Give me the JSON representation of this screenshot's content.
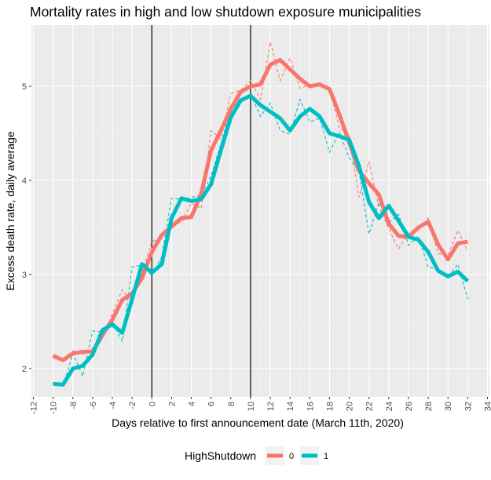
{
  "chart_data": {
    "type": "line",
    "title": "Mortality rates in high and low shutdown exposure municipalities",
    "xlabel": "Days relative to first announcement date (March 11th, 2020)",
    "ylabel": "Excess death rate, daily average",
    "xlim": [
      -12.2,
      34.2
    ],
    "ylim": [
      1.7,
      5.65
    ],
    "x_ticks": [
      -12,
      -10,
      -8,
      -6,
      -4,
      -2,
      0,
      2,
      4,
      6,
      8,
      10,
      12,
      14,
      16,
      18,
      20,
      22,
      24,
      26,
      28,
      30,
      32,
      34
    ],
    "y_ticks": [
      2,
      3,
      4,
      5
    ],
    "vlines": [
      0,
      10
    ],
    "legend": {
      "title": "HighShutdown",
      "position": "bottom"
    },
    "background": "#EBEBEB",
    "grid": true,
    "series": [
      {
        "name": "0",
        "color": "#F8766D",
        "smoothed": [
          [
            -10,
            2.14
          ],
          [
            -9,
            2.09
          ],
          [
            -8,
            2.16
          ],
          [
            -7,
            2.18
          ],
          [
            -6,
            2.18
          ],
          [
            -5,
            2.36
          ],
          [
            -4,
            2.52
          ],
          [
            -3,
            2.73
          ],
          [
            -2,
            2.8
          ],
          [
            -1,
            2.96
          ],
          [
            0,
            3.24
          ],
          [
            1,
            3.42
          ],
          [
            2,
            3.51
          ],
          [
            3,
            3.6
          ],
          [
            4,
            3.61
          ],
          [
            5,
            3.86
          ],
          [
            6,
            4.32
          ],
          [
            7,
            4.53
          ],
          [
            8,
            4.76
          ],
          [
            9,
            4.94
          ],
          [
            10,
            5.0
          ],
          [
            11,
            5.02
          ],
          [
            12,
            5.23
          ],
          [
            13,
            5.28
          ],
          [
            14,
            5.18
          ],
          [
            15,
            5.08
          ],
          [
            16,
            5.0
          ],
          [
            17,
            5.02
          ],
          [
            18,
            4.97
          ],
          [
            19,
            4.7
          ],
          [
            20,
            4.4
          ],
          [
            21,
            4.1
          ],
          [
            22,
            3.97
          ],
          [
            23,
            3.85
          ],
          [
            24,
            3.54
          ],
          [
            25,
            3.41
          ],
          [
            26,
            3.4
          ],
          [
            27,
            3.5
          ],
          [
            28,
            3.56
          ],
          [
            29,
            3.32
          ],
          [
            30,
            3.16
          ],
          [
            31,
            3.33
          ],
          [
            32,
            3.35
          ]
        ],
        "daily": [
          [
            -10,
            2.11
          ],
          [
            -9,
            2.1
          ],
          [
            -8,
            2.19
          ],
          [
            -7,
            2.15
          ],
          [
            -6,
            2.22
          ],
          [
            -5,
            2.31
          ],
          [
            -4,
            2.58
          ],
          [
            -3,
            2.84
          ],
          [
            -2,
            2.71
          ],
          [
            -1,
            3.02
          ],
          [
            0,
            3.35
          ],
          [
            1,
            3.39
          ],
          [
            2,
            3.55
          ],
          [
            3,
            3.55
          ],
          [
            4,
            3.76
          ],
          [
            5,
            3.7
          ],
          [
            6,
            4.53
          ],
          [
            7,
            4.44
          ],
          [
            8,
            4.92
          ],
          [
            9,
            4.96
          ],
          [
            10,
            5.06
          ],
          [
            11,
            4.86
          ],
          [
            12,
            5.47
          ],
          [
            13,
            5.06
          ],
          [
            14,
            5.3
          ],
          [
            15,
            4.98
          ],
          [
            16,
            5.01
          ],
          [
            17,
            5.03
          ],
          [
            18,
            4.98
          ],
          [
            19,
            4.56
          ],
          [
            20,
            4.49
          ],
          [
            21,
            3.82
          ],
          [
            22,
            4.2
          ],
          [
            23,
            3.72
          ],
          [
            24,
            3.49
          ],
          [
            25,
            3.27
          ],
          [
            26,
            3.45
          ],
          [
            27,
            3.47
          ],
          [
            28,
            3.6
          ],
          [
            29,
            3.22
          ],
          [
            30,
            3.2
          ],
          [
            31,
            3.47
          ],
          [
            32,
            3.25
          ]
        ]
      },
      {
        "name": "1",
        "color": "#00BFC4",
        "smoothed": [
          [
            -10,
            1.84
          ],
          [
            -9,
            1.83
          ],
          [
            -8,
            2.0
          ],
          [
            -7,
            2.03
          ],
          [
            -6,
            2.15
          ],
          [
            -5,
            2.41
          ],
          [
            -4,
            2.47
          ],
          [
            -3,
            2.38
          ],
          [
            -2,
            2.74
          ],
          [
            -1,
            3.11
          ],
          [
            0,
            3.02
          ],
          [
            1,
            3.11
          ],
          [
            2,
            3.6
          ],
          [
            3,
            3.81
          ],
          [
            4,
            3.78
          ],
          [
            5,
            3.8
          ],
          [
            6,
            3.96
          ],
          [
            7,
            4.32
          ],
          [
            8,
            4.67
          ],
          [
            9,
            4.85
          ],
          [
            10,
            4.9
          ],
          [
            11,
            4.8
          ],
          [
            12,
            4.73
          ],
          [
            13,
            4.66
          ],
          [
            14,
            4.53
          ],
          [
            15,
            4.68
          ],
          [
            16,
            4.76
          ],
          [
            17,
            4.68
          ],
          [
            18,
            4.5
          ],
          [
            19,
            4.47
          ],
          [
            20,
            4.43
          ],
          [
            21,
            4.15
          ],
          [
            22,
            3.77
          ],
          [
            23,
            3.6
          ],
          [
            24,
            3.73
          ],
          [
            25,
            3.57
          ],
          [
            26,
            3.4
          ],
          [
            27,
            3.37
          ],
          [
            28,
            3.24
          ],
          [
            29,
            3.04
          ],
          [
            30,
            2.98
          ],
          [
            31,
            3.03
          ],
          [
            32,
            2.93
          ]
        ],
        "daily": [
          [
            -10,
            1.85
          ],
          [
            -9,
            1.81
          ],
          [
            -8,
            2.16
          ],
          [
            -7,
            1.92
          ],
          [
            -6,
            2.4
          ],
          [
            -5,
            2.39
          ],
          [
            -4,
            2.5
          ],
          [
            -3,
            2.29
          ],
          [
            -2,
            3.08
          ],
          [
            -1,
            3.1
          ],
          [
            0,
            2.99
          ],
          [
            1,
            3.19
          ],
          [
            2,
            3.81
          ],
          [
            3,
            3.8
          ],
          [
            4,
            3.82
          ],
          [
            5,
            3.84
          ],
          [
            6,
            4.05
          ],
          [
            7,
            4.39
          ],
          [
            8,
            4.76
          ],
          [
            9,
            4.84
          ],
          [
            10,
            4.92
          ],
          [
            11,
            4.68
          ],
          [
            12,
            4.82
          ],
          [
            13,
            4.53
          ],
          [
            14,
            4.49
          ],
          [
            15,
            4.86
          ],
          [
            16,
            4.62
          ],
          [
            17,
            4.66
          ],
          [
            18,
            4.3
          ],
          [
            19,
            4.51
          ],
          [
            20,
            4.24
          ],
          [
            21,
            4.09
          ],
          [
            22,
            3.43
          ],
          [
            23,
            3.77
          ],
          [
            24,
            3.55
          ],
          [
            25,
            3.64
          ],
          [
            26,
            3.31
          ],
          [
            27,
            3.41
          ],
          [
            28,
            3.08
          ],
          [
            29,
            3.05
          ],
          [
            30,
            2.97
          ],
          [
            31,
            3.11
          ],
          [
            32,
            2.74
          ]
        ]
      }
    ]
  }
}
